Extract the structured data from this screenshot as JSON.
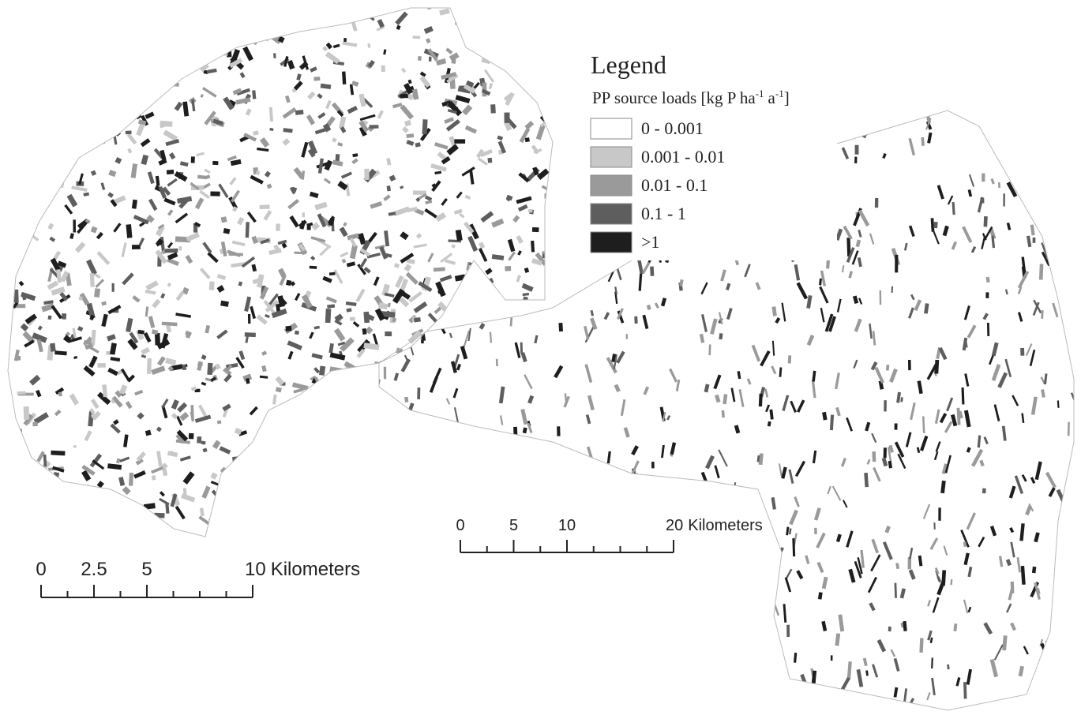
{
  "legend": {
    "title": "Legend",
    "subtitle": [
      "PP source loads [kg P ha",
      "-1",
      "a",
      "-1",
      "]"
    ],
    "items": [
      {
        "label": "0 - 0.001",
        "color": "#ffffff"
      },
      {
        "label": "0.001 - 0.01",
        "color": "#c8c8c8"
      },
      {
        "label": "0.01 - 0.1",
        "color": "#9a9a9a"
      },
      {
        "label": "0.1 - 1",
        "color": "#5e5e5e"
      },
      {
        "label": ">1",
        "color": "#1e1e1e"
      }
    ]
  },
  "scale_bars": [
    {
      "ticks": [
        0,
        2.5,
        5,
        10
      ],
      "unit": "Kilometers"
    },
    {
      "ticks": [
        0,
        5,
        10,
        20
      ],
      "unit": "Kilometers"
    }
  ]
}
